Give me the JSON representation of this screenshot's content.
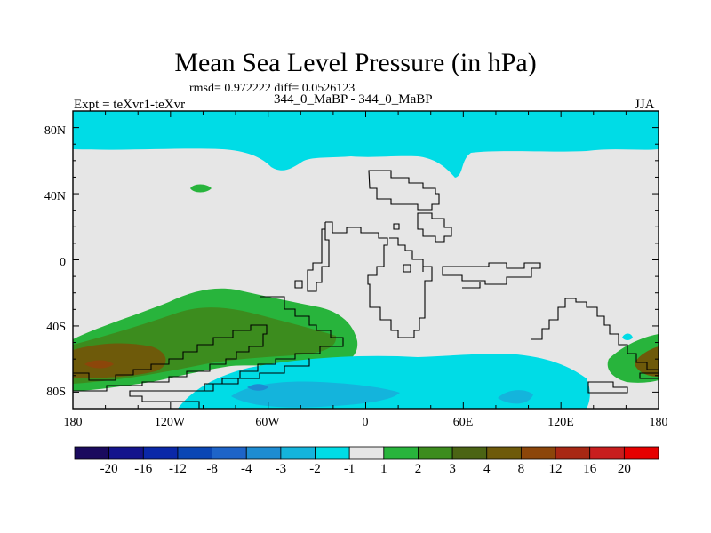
{
  "title": "Mean Sea Level Pressure (in hPa)",
  "stats": "rmsd= 0.972222 diff= 0.0526123",
  "experiment": "Expt = teXvr1-teXvr",
  "runs": "344_0_MaBP - 344_0_MaBP",
  "season": "JJA",
  "lat_labels": [
    "80N",
    "40N",
    "0",
    "40S",
    "80S"
  ],
  "lon_labels": [
    "180",
    "120W",
    "60W",
    "0",
    "60E",
    "120E",
    "180"
  ],
  "colorbar": {
    "labels": [
      "-20",
      "-16",
      "-12",
      "-8",
      "-4",
      "-3",
      "-2",
      "-1",
      "1",
      "2",
      "3",
      "4",
      "8",
      "12",
      "16",
      "20"
    ],
    "colors": [
      "#1a0a5e",
      "#14148c",
      "#0a28a8",
      "#0a46b4",
      "#1e64c8",
      "#1e8cd2",
      "#14b4dc",
      "#00dce6",
      "#e6e6e6",
      "#28b43c",
      "#3c8c1e",
      "#4b6414",
      "#6e5a0a",
      "#8c460a",
      "#a82814",
      "#c81e1e",
      "#e60000"
    ]
  },
  "field_colors": {
    "background": "#e6e6e6",
    "neg_light": "#00dce6",
    "neg_mid": "#14b4dc",
    "neg_strong": "#1e8cd2",
    "pos_light": "#28b43c",
    "pos_mid": "#3c8c1e",
    "pos_strong": "#6e5a0a",
    "pos_max": "#8c460a"
  }
}
